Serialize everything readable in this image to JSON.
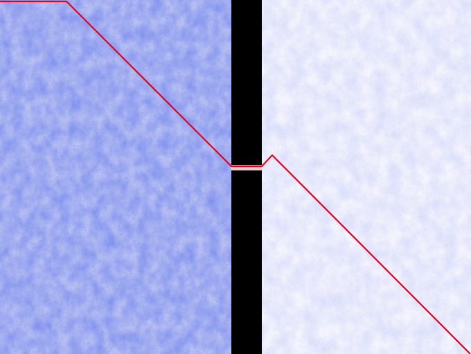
{
  "colors": {
    "background": "#ffffff",
    "texture_dense": "#2f3fd6",
    "texture_light": "#6b78e8",
    "separator": "#000000",
    "separator_gap": "#f3c6cf",
    "path_line": "#e3001b"
  },
  "scene": {
    "description_style": "two textured panels separated by a black vertical bar with a small gap",
    "left_panel_density": "dense",
    "right_panel_density": "sparse"
  }
}
